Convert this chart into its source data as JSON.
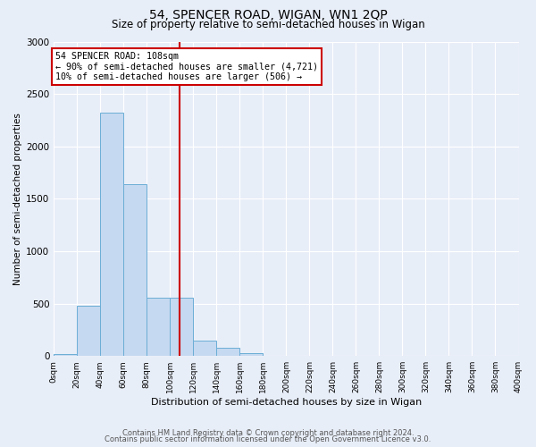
{
  "title": "54, SPENCER ROAD, WIGAN, WN1 2QP",
  "subtitle": "Size of property relative to semi-detached houses in Wigan",
  "xlabel": "Distribution of semi-detached houses by size in Wigan",
  "ylabel": "Number of semi-detached properties",
  "bar_left_edges": [
    0,
    20,
    40,
    60,
    80,
    100,
    120,
    140,
    160,
    180,
    200,
    220,
    240,
    260,
    280,
    300,
    320,
    340,
    360,
    380
  ],
  "bar_heights": [
    15,
    480,
    2320,
    1640,
    560,
    560,
    150,
    75,
    30,
    0,
    0,
    0,
    0,
    0,
    0,
    0,
    0,
    0,
    0,
    0
  ],
  "bin_width": 20,
  "bar_color": "#c5d9f0",
  "bar_edge_color": "#6baed6",
  "property_size": 108,
  "vline_color": "#cc0000",
  "annotation_text": "54 SPENCER ROAD: 108sqm\n← 90% of semi-detached houses are smaller (4,721)\n10% of semi-detached houses are larger (506) →",
  "annotation_box_color": "#ffffff",
  "annotation_box_edge": "#cc0000",
  "ylim": [
    0,
    3000
  ],
  "yticks": [
    0,
    500,
    1000,
    1500,
    2000,
    2500,
    3000
  ],
  "xtick_labels": [
    "0sqm",
    "20sqm",
    "40sqm",
    "60sqm",
    "80sqm",
    "100sqm",
    "120sqm",
    "140sqm",
    "160sqm",
    "180sqm",
    "200sqm",
    "220sqm",
    "240sqm",
    "260sqm",
    "280sqm",
    "300sqm",
    "320sqm",
    "340sqm",
    "360sqm",
    "380sqm",
    "400sqm"
  ],
  "bg_color": "#e8eef8",
  "grid_color": "#ffffff",
  "footer_line1": "Contains HM Land Registry data © Crown copyright and database right 2024.",
  "footer_line2": "Contains public sector information licensed under the Open Government Licence v3.0."
}
